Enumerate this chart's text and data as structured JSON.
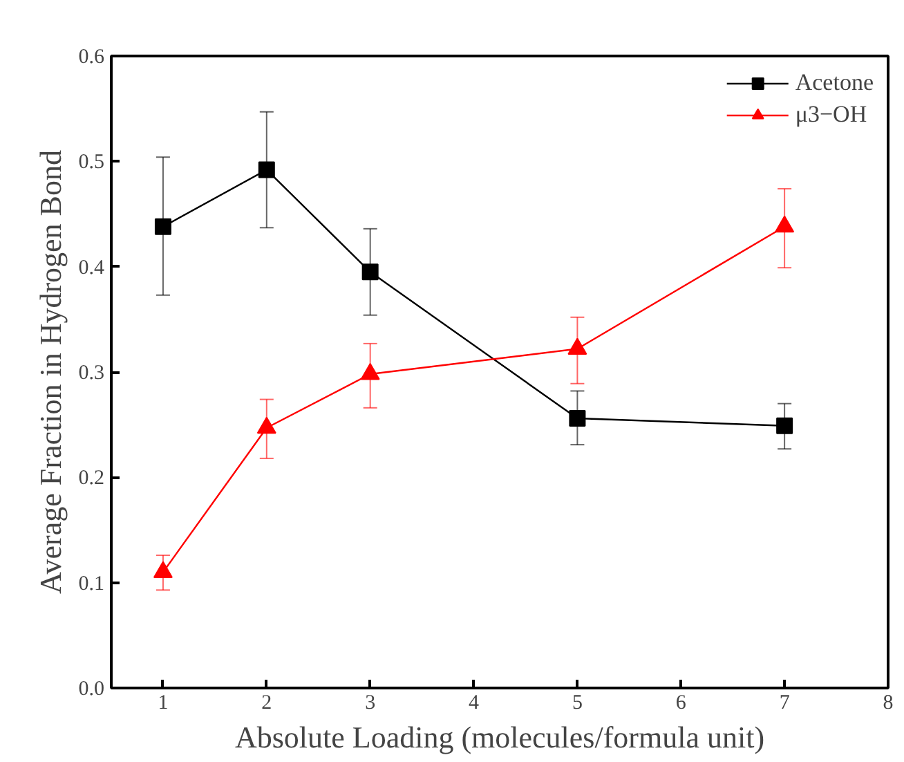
{
  "chart_data": {
    "type": "line",
    "xlabel": "Absolute Loading (molecules/formula unit)",
    "ylabel": "Average Fraction in Hydrogen Bond",
    "x": [
      1,
      2,
      3,
      5,
      7
    ],
    "xlim": [
      0.5,
      8
    ],
    "xticks": [
      1,
      2,
      3,
      4,
      5,
      6,
      7,
      8
    ],
    "ylim": [
      0,
      0.6
    ],
    "yticks": [
      {
        "value": 0,
        "label": "0.0"
      },
      0.1,
      0.2,
      0.3,
      0.4,
      0.5,
      0.6
    ],
    "legend": "top right",
    "grid": false,
    "series": [
      {
        "name": "Acetone",
        "color": "#000000",
        "marker": "square",
        "values": [
          0.438,
          0.492,
          0.395,
          0.256,
          0.249
        ],
        "errors": [
          [
            0.373,
            0.504
          ],
          [
            0.437,
            0.547
          ],
          [
            0.354,
            0.436
          ],
          [
            0.231,
            0.282
          ],
          [
            0.227,
            0.27
          ]
        ]
      },
      {
        "name": "μ3−OH",
        "color": "#ff0000",
        "marker": "triangle",
        "values": [
          0.11,
          0.247,
          0.298,
          0.322,
          0.438
        ],
        "errors": [
          [
            0.093,
            0.126
          ],
          [
            0.218,
            0.274
          ],
          [
            0.266,
            0.327
          ],
          [
            0.289,
            0.352
          ],
          [
            0.399,
            0.474
          ]
        ]
      }
    ]
  }
}
